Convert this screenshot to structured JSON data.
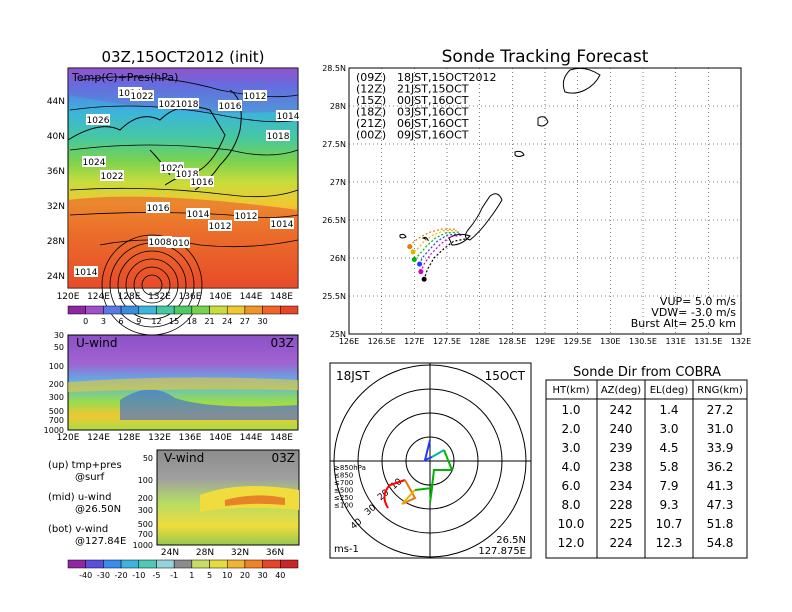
{
  "colors": {
    "z09": "#000000",
    "z12": "#c800c8",
    "z15": "#1e3cff",
    "z18": "#00b400",
    "z21": "#e6b400",
    "z00": "#e6780a",
    "land": "#000000"
  },
  "map": {
    "title": "03Z,15OCT2012 (init)",
    "label": "Temp(C)+Pres(hPa)",
    "lat_ticks": [
      "44N",
      "40N",
      "36N",
      "32N",
      "28N",
      "24N"
    ],
    "lon_ticks": [
      "120E",
      "124E",
      "128E",
      "132E",
      "136E",
      "140E",
      "144E",
      "148E"
    ],
    "pressure_labels": [
      "1024",
      "1022",
      "1020",
      "1018",
      "1016",
      "1012",
      "1014",
      "1018",
      "1026",
      "1024",
      "1020",
      "1018",
      "1016",
      "1022",
      "1016",
      "1014",
      "1012",
      "1012",
      "1010",
      "1008",
      "1014",
      "1014"
    ],
    "colorbar_ticks": [
      "0",
      "3",
      "6",
      "9",
      "12",
      "15",
      "18",
      "21",
      "24",
      "27",
      "30"
    ]
  },
  "uwind": {
    "label": "U-wind",
    "time": "03Z",
    "y_ticks": [
      "30",
      "50",
      "100",
      "200",
      "300",
      "500",
      "700",
      "1000"
    ],
    "x_ticks": [
      "120E",
      "124E",
      "128E",
      "132E",
      "136E",
      "140E",
      "144E",
      "148E"
    ]
  },
  "vwind": {
    "label": "V-wind",
    "time": "03Z",
    "y_ticks": [
      "50",
      "100",
      "200",
      "300",
      "500",
      "700",
      "1000"
    ],
    "x_ticks": [
      "24N",
      "28N",
      "32N",
      "36N"
    ],
    "colorbar_ticks": [
      "-40",
      "-30",
      "-20",
      "-10",
      "-5",
      "-1",
      "1",
      "5",
      "10",
      "20",
      "30",
      "40"
    ]
  },
  "notes": {
    "up": "(up) tmp+pres",
    "up2": "@surf",
    "mid": "(mid) u-wind",
    "mid2": "@26.50N",
    "bot": "(bot) v-wind",
    "bot2": "@127.84E"
  },
  "track": {
    "title": "Sonde Tracking Forecast",
    "legend": [
      {
        "key": "(09Z)",
        "text": "18JST,15OCT2012",
        "color": "#000000"
      },
      {
        "key": "(12Z)",
        "text": "21JST,15OCT",
        "color": "#c800c8"
      },
      {
        "key": "(15Z)",
        "text": "00JST,16OCT",
        "color": "#1e3cff"
      },
      {
        "key": "(18Z)",
        "text": "03JST,16OCT",
        "color": "#00b400"
      },
      {
        "key": "(21Z)",
        "text": "06JST,16OCT",
        "color": "#e6b400"
      },
      {
        "key": "(00Z)",
        "text": "09JST,16OCT",
        "color": "#e6780a"
      }
    ],
    "lat_ticks": [
      "28.5N",
      "28N",
      "27.5N",
      "27N",
      "26.5N",
      "26N",
      "25.5N",
      "25N"
    ],
    "lon_ticks": [
      "126E",
      "126.5E",
      "127E",
      "127.5E",
      "128E",
      "128.5E",
      "129E",
      "129.5E",
      "130E",
      "130.5E",
      "131E",
      "131.5E",
      "132E"
    ],
    "params": [
      "VUP= 5.0 m/s",
      "VDW= -3.0 m/s",
      "Burst Alt= 25.0 km"
    ]
  },
  "polar": {
    "left_label": "18JST",
    "right_label": "15OCT",
    "unit": "ms-1",
    "lat": "26.5N",
    "lon": "127.875E",
    "level_legend": [
      {
        "text": "≥850hPa",
        "color": "#ff0000"
      },
      {
        "text": "≤850",
        "color": "#e6780a"
      },
      {
        "text": "≤700",
        "color": "#e6b400"
      },
      {
        "text": "≤500",
        "color": "#00b400"
      },
      {
        "text": "≤250",
        "color": "#00b4b4"
      },
      {
        "text": "≤100",
        "color": "#1e3cff"
      }
    ],
    "ring_labels": [
      "10",
      "20",
      "30",
      "40"
    ]
  },
  "table": {
    "title": "Sonde Dir from COBRA",
    "headers": [
      "HT(km)",
      "AZ(deg)",
      "EL(deg)",
      "RNG(km)"
    ],
    "rows": [
      [
        "1.0",
        "242",
        "1.4",
        "27.2"
      ],
      [
        "2.0",
        "240",
        "3.0",
        "31.0"
      ],
      [
        "3.0",
        "239",
        "4.5",
        "33.9"
      ],
      [
        "4.0",
        "238",
        "5.8",
        "36.2"
      ],
      [
        "6.0",
        "234",
        "7.9",
        "41.3"
      ],
      [
        "8.0",
        "228",
        "9.3",
        "47.3"
      ],
      [
        "10.0",
        "225",
        "10.7",
        "51.8"
      ],
      [
        "12.0",
        "224",
        "12.3",
        "54.8"
      ]
    ]
  },
  "chart_data": [
    {
      "type": "line",
      "title": "Sonde Tracking Forecast",
      "xlabel": "",
      "ylabel": "",
      "xlim": [
        126,
        132
      ],
      "ylim": [
        25,
        28.5
      ],
      "series": [
        {
          "name": "(09Z) 18JST,15OCT2012",
          "x": [
            127.78,
            127.6,
            127.45,
            127.3,
            127.2,
            127.15
          ],
          "y": [
            26.25,
            26.22,
            26.12,
            26.0,
            25.85,
            25.72
          ]
        },
        {
          "name": "(12Z) 21JST,15OCT",
          "x": [
            127.72,
            127.55,
            127.4,
            127.25,
            127.15,
            127.1
          ],
          "y": [
            26.3,
            26.28,
            26.18,
            26.05,
            25.92,
            25.82
          ]
        },
        {
          "name": "(15Z) 00JST,16OCT",
          "x": [
            127.7,
            127.5,
            127.35,
            127.22,
            127.12,
            127.08
          ],
          "y": [
            26.32,
            26.3,
            26.22,
            26.1,
            26.0,
            25.92
          ]
        },
        {
          "name": "(18Z) 03JST,16OCT",
          "x": [
            127.68,
            127.48,
            127.32,
            127.18,
            127.08,
            127.0
          ],
          "y": [
            26.34,
            26.33,
            26.26,
            26.15,
            26.05,
            25.98
          ]
        },
        {
          "name": "(21Z) 06JST,16OCT",
          "x": [
            127.65,
            127.45,
            127.28,
            127.15,
            127.05,
            126.98
          ],
          "y": [
            26.36,
            26.36,
            26.3,
            26.22,
            26.12,
            26.08
          ]
        },
        {
          "name": "(00Z) 09JST,16OCT",
          "x": [
            127.62,
            127.42,
            127.24,
            127.1,
            127.0,
            126.93
          ],
          "y": [
            26.38,
            26.38,
            26.34,
            26.28,
            26.22,
            26.15
          ]
        }
      ]
    },
    {
      "type": "table",
      "title": "Sonde Dir from COBRA",
      "columns": [
        "HT(km)",
        "AZ(deg)",
        "EL(deg)",
        "RNG(km)"
      ],
      "rows": [
        [
          1.0,
          242,
          1.4,
          27.2
        ],
        [
          2.0,
          240,
          3.0,
          31.0
        ],
        [
          3.0,
          239,
          4.5,
          33.9
        ],
        [
          4.0,
          238,
          5.8,
          36.2
        ],
        [
          6.0,
          234,
          7.9,
          41.3
        ],
        [
          8.0,
          228,
          9.3,
          47.3
        ],
        [
          10.0,
          225,
          10.7,
          51.8
        ],
        [
          12.0,
          224,
          12.3,
          54.8
        ]
      ]
    }
  ]
}
